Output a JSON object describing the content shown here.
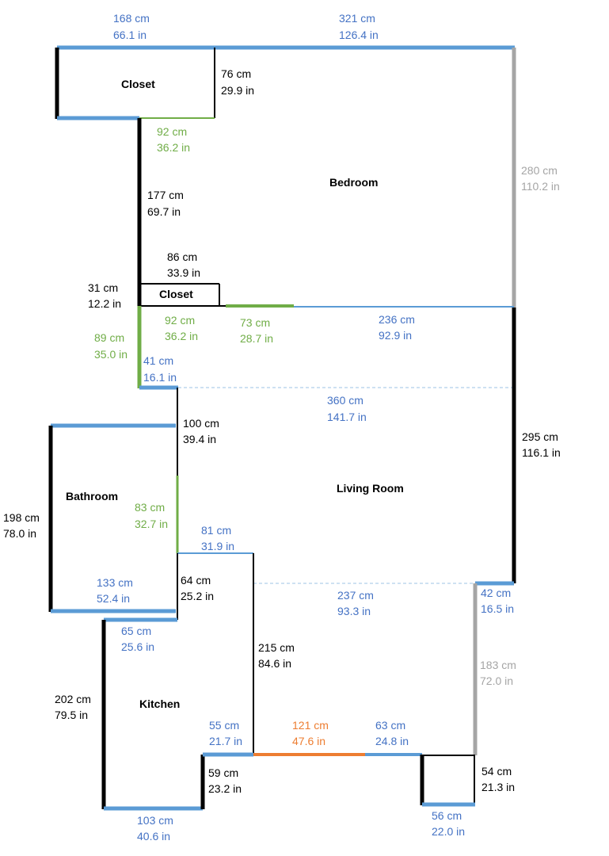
{
  "colors": {
    "black": "#000000",
    "blue": "#5b9bd5",
    "green": "#70ad47",
    "gray": "#a5a5a5",
    "orange": "#ed7d31",
    "text_blue": "#4472c4"
  },
  "rooms": {
    "closet_top": "Closet",
    "bedroom": "Bedroom",
    "closet_small": "Closet",
    "living_room": "Living Room",
    "bathroom": "Bathroom",
    "kitchen": "Kitchen"
  },
  "dims": {
    "top_left_cm": "168 cm",
    "top_left_in": "66.1 in",
    "top_right_cm": "321 cm",
    "top_right_in": "126.4 in",
    "closet_height_cm": "76 cm",
    "closet_height_in": "29.9 in",
    "closet_bottom_cm": "92 cm",
    "closet_bottom_in": "36.2 in",
    "bedroom_right_cm": "280 cm",
    "bedroom_right_in": "110.2 in",
    "bedroom_left_cm": "177 cm",
    "bedroom_left_in": "69.7 in",
    "small_closet_top_cm": "86 cm",
    "small_closet_top_in": "33.9 in",
    "small_closet_left_cm": "31 cm",
    "small_closet_left_in": "12.2 in",
    "small_closet_bottom_cm": "92 cm",
    "small_closet_bottom_in": "36.2 in",
    "opening_cm": "73 cm",
    "opening_in": "28.7 in",
    "bedroom_bottom_cm": "236 cm",
    "bedroom_bottom_in": "92.9 in",
    "hall_left_cm": "89 cm",
    "hall_left_in": "35.0 in",
    "hall_bottom_cm": "41 cm",
    "hall_bottom_in": "16.1 in",
    "living_width_cm": "360 cm",
    "living_width_in": "141.7 in",
    "living_right_cm": "295 cm",
    "living_right_in": "116.1 in",
    "bath_wall_upper_cm": "100 cm",
    "bath_wall_upper_in": "39.4 in",
    "bath_left_cm": "198 cm",
    "bath_left_in": "78.0 in",
    "bath_door_cm": "83 cm",
    "bath_door_in": "32.7 in",
    "living_step_cm": "81 cm",
    "living_step_in": "31.9 in",
    "bath_bottom_cm": "133 cm",
    "bath_bottom_in": "52.4 in",
    "kitchen_wall_cm": "64 cm",
    "kitchen_wall_in": "25.2 in",
    "kitchen_opening_cm": "237 cm",
    "kitchen_opening_in": "93.3 in",
    "right_step_cm": "42 cm",
    "right_step_in": "16.5 in",
    "kitchen_top_cm": "65 cm",
    "kitchen_top_in": "25.6 in",
    "kitchen_inner_cm": "215 cm",
    "kitchen_inner_in": "84.6 in",
    "right_lower_cm": "183 cm",
    "right_lower_in": "72.0 in",
    "kitchen_left_cm": "202 cm",
    "kitchen_left_in": "79.5 in",
    "kitchen_step_cm": "55 cm",
    "kitchen_step_in": "21.7 in",
    "door_cm": "121 cm",
    "door_in": "47.6 in",
    "bottom_right_cm": "63 cm",
    "bottom_right_in": "24.8 in",
    "kitchen_notch_cm": "59 cm",
    "kitchen_notch_in": "23.2 in",
    "alcove_height_cm": "54 cm",
    "alcove_height_in": "21.3 in",
    "kitchen_bottom_cm": "103 cm",
    "kitchen_bottom_in": "40.6 in",
    "alcove_bottom_cm": "56 cm",
    "alcove_bottom_in": "22.0 in"
  }
}
